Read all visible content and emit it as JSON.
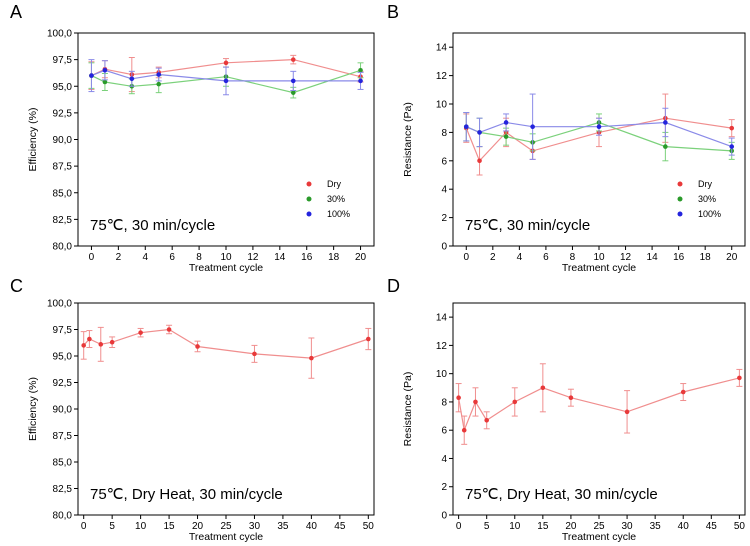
{
  "colors": {
    "dry": "#e8393a",
    "p30": "#2a9a2a",
    "p100": "#2424dd",
    "dry_line": "#f08e8e",
    "p30_line": "#7bd17b",
    "p100_line": "#8a8ae8"
  },
  "chart_data": [
    {
      "panel": "A",
      "type": "line",
      "ylabel": "Efficiency (%)",
      "xlabel": "Treatment cycle",
      "annotation": "75℃, 30 min/cycle",
      "xlim": [
        -1,
        21
      ],
      "ylim": [
        80,
        100
      ],
      "xticks": [
        0,
        2,
        4,
        6,
        8,
        10,
        12,
        14,
        16,
        18,
        20
      ],
      "yticks": [
        80,
        82.5,
        85,
        87.5,
        90,
        92.5,
        95,
        97.5,
        100
      ],
      "ytick_labels": [
        "80,0",
        "82,5",
        "85,0",
        "87,5",
        "90,0",
        "92,5",
        "95,0",
        "97,5",
        "100,0"
      ],
      "legend": {
        "position": "bottom-right",
        "entries": [
          "Dry",
          "30%",
          "100%"
        ]
      },
      "series": [
        {
          "name": "Dry",
          "x": [
            0,
            1,
            3,
            5,
            10,
            15,
            20
          ],
          "y": [
            96.0,
            96.6,
            96.1,
            96.3,
            97.2,
            97.5,
            95.9
          ],
          "err": [
            1.3,
            0.8,
            1.6,
            0.5,
            0.4,
            0.4,
            0.5
          ]
        },
        {
          "name": "30%",
          "x": [
            0,
            1,
            3,
            5,
            10,
            15,
            20
          ],
          "y": [
            96.0,
            95.4,
            95.0,
            95.2,
            95.9,
            94.4,
            96.5
          ],
          "err": [
            1.2,
            0.8,
            0.7,
            0.8,
            0.9,
            0.5,
            0.7
          ]
        },
        {
          "name": "100%",
          "x": [
            0,
            1,
            3,
            5,
            10,
            15,
            20
          ],
          "y": [
            96.0,
            96.5,
            95.7,
            96.1,
            95.5,
            95.5,
            95.5
          ],
          "err": [
            1.5,
            0.9,
            0.7,
            0.6,
            1.3,
            0.9,
            0.8
          ]
        }
      ]
    },
    {
      "panel": "B",
      "type": "line",
      "ylabel": "Resistance (Pa)",
      "xlabel": "Treatment cycle",
      "annotation": "75℃, 30 min/cycle",
      "xlim": [
        -1,
        21
      ],
      "ylim": [
        0,
        15
      ],
      "xticks": [
        0,
        2,
        4,
        6,
        8,
        10,
        12,
        14,
        16,
        18,
        20
      ],
      "yticks": [
        0,
        2,
        4,
        6,
        8,
        10,
        12,
        14
      ],
      "ytick_labels": [
        "0",
        "2",
        "4",
        "6",
        "8",
        "10",
        "12",
        "14"
      ],
      "legend": {
        "position": "bottom-right",
        "entries": [
          "Dry",
          "30%",
          "100%"
        ]
      },
      "series": [
        {
          "name": "Dry",
          "x": [
            0,
            1,
            3,
            5,
            10,
            15,
            20
          ],
          "y": [
            8.3,
            6.0,
            8.0,
            6.7,
            8.0,
            9.0,
            8.3
          ],
          "err": [
            1.0,
            1.0,
            1.0,
            0.6,
            1.0,
            1.7,
            0.6
          ]
        },
        {
          "name": "30%",
          "x": [
            0,
            1,
            3,
            5,
            10,
            15,
            20
          ],
          "y": [
            8.4,
            8.0,
            7.7,
            7.3,
            8.7,
            7.0,
            6.7
          ],
          "err": [
            1.0,
            1.0,
            0.6,
            0.6,
            0.6,
            1.0,
            0.6
          ]
        },
        {
          "name": "100%",
          "x": [
            0,
            1,
            3,
            5,
            10,
            15,
            20
          ],
          "y": [
            8.4,
            8.0,
            8.7,
            8.4,
            8.4,
            8.7,
            7.0
          ],
          "err": [
            1.0,
            1.0,
            0.6,
            2.3,
            0.6,
            1.0,
            0.6
          ]
        }
      ]
    },
    {
      "panel": "C",
      "type": "line",
      "ylabel": "Efficiency (%)",
      "xlabel": "Treatment cycle",
      "annotation": "75℃, Dry Heat, 30 min/cycle",
      "xlim": [
        -1,
        51
      ],
      "ylim": [
        80,
        100
      ],
      "xticks": [
        0,
        5,
        10,
        15,
        20,
        25,
        30,
        35,
        40,
        45,
        50
      ],
      "yticks": [
        80,
        82.5,
        85,
        87.5,
        90,
        92.5,
        95,
        97.5,
        100
      ],
      "ytick_labels": [
        "80,0",
        "82,5",
        "85,0",
        "87,5",
        "90,0",
        "92,5",
        "95,0",
        "97,5",
        "100,0"
      ],
      "series": [
        {
          "name": "Dry",
          "x": [
            0,
            1,
            3,
            5,
            10,
            15,
            20,
            30,
            40,
            50
          ],
          "y": [
            96.0,
            96.6,
            96.1,
            96.3,
            97.2,
            97.5,
            95.9,
            95.2,
            94.8,
            96.6
          ],
          "err": [
            1.3,
            0.8,
            1.6,
            0.5,
            0.4,
            0.4,
            0.5,
            0.8,
            1.9,
            1.0
          ]
        }
      ]
    },
    {
      "panel": "D",
      "type": "line",
      "ylabel": "Resistance (Pa)",
      "xlabel": "Treatment cycle",
      "annotation": "75℃, Dry Heat, 30 min/cycle",
      "xlim": [
        -1,
        51
      ],
      "ylim": [
        0,
        15
      ],
      "xticks": [
        0,
        5,
        10,
        15,
        20,
        25,
        30,
        35,
        40,
        45,
        50
      ],
      "yticks": [
        0,
        2,
        4,
        6,
        8,
        10,
        12,
        14
      ],
      "ytick_labels": [
        "0",
        "2",
        "4",
        "6",
        "8",
        "10",
        "12",
        "14"
      ],
      "series": [
        {
          "name": "Dry",
          "x": [
            0,
            1,
            3,
            5,
            10,
            15,
            20,
            30,
            40,
            50
          ],
          "y": [
            8.3,
            6.0,
            8.0,
            6.7,
            8.0,
            9.0,
            8.3,
            7.3,
            8.7,
            9.7
          ],
          "err": [
            1.0,
            1.0,
            1.0,
            0.6,
            1.0,
            1.7,
            0.6,
            1.5,
            0.6,
            0.6
          ]
        }
      ]
    }
  ]
}
